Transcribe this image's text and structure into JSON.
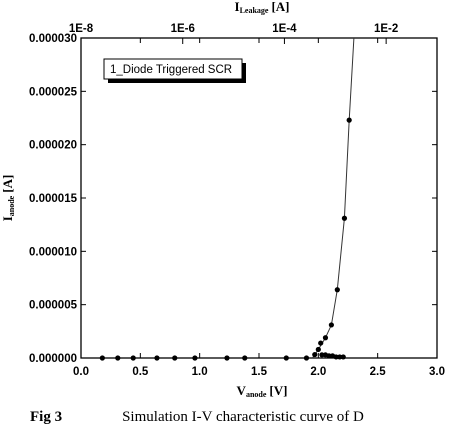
{
  "chart_data": {
    "type": "scatter",
    "legend": {
      "label": "1_Diode Triggered SCR",
      "placement": "top-left"
    },
    "x_axis": {
      "label_main": "V",
      "label_sub": "anode",
      "label_unit": "[V]",
      "range": [
        0.0,
        3.0
      ],
      "ticks": [
        "0.0",
        "0.5",
        "1.0",
        "1.5",
        "2.0",
        "2.5",
        "3.0"
      ],
      "tick_values": [
        0.0,
        0.5,
        1.0,
        1.5,
        2.0,
        2.5,
        3.0
      ]
    },
    "y_axis": {
      "label_main": "I",
      "label_sub": "anode",
      "label_unit": "[A]",
      "range": [
        0.0,
        3e-05
      ],
      "ticks": [
        "0.000000",
        "0.000005",
        "0.000010",
        "0.000015",
        "0.000020",
        "0.000025",
        "0.000030"
      ],
      "tick_values": [
        0.0,
        5e-06,
        1e-05,
        1.5e-05,
        2e-05,
        2.5e-05,
        3e-05
      ]
    },
    "top_axis": {
      "label_main": "I",
      "label_sub": "Leakage",
      "label_unit": "[A]",
      "scale": "log",
      "range": [
        1e-08,
        0.1
      ],
      "ticks": [
        "1E-8",
        "1E-6",
        "1E-4",
        "1E-2"
      ],
      "tick_values": [
        1e-08,
        1e-06,
        0.0001,
        0.01
      ]
    },
    "series": [
      {
        "marker": "circle",
        "points": [
          {
            "x": 0.18,
            "y": 0.0
          },
          {
            "x": 0.31,
            "y": 0.0
          },
          {
            "x": 0.44,
            "y": 0.0
          },
          {
            "x": 0.64,
            "y": 0.0
          },
          {
            "x": 0.79,
            "y": 0.0
          },
          {
            "x": 0.96,
            "y": 0.0
          },
          {
            "x": 1.23,
            "y": 0.0
          },
          {
            "x": 1.38,
            "y": 0.0
          },
          {
            "x": 1.73,
            "y": 0.0
          },
          {
            "x": 1.9,
            "y": 0.0
          },
          {
            "x": 1.97,
            "y": 3.2e-07
          },
          {
            "x": 2.0,
            "y": 8e-07
          },
          {
            "x": 2.02,
            "y": 1.4e-06
          },
          {
            "x": 2.06,
            "y": 1.9e-06
          },
          {
            "x": 2.11,
            "y": 3.1e-06
          },
          {
            "x": 2.16,
            "y": 6.4e-06
          },
          {
            "x": 2.22,
            "y": 1.31e-05
          },
          {
            "x": 2.26,
            "y": 2.23e-05
          },
          {
            "x": 2.03,
            "y": 3e-07
          },
          {
            "x": 2.06,
            "y": 3e-07
          },
          {
            "x": 2.09,
            "y": 2e-07
          },
          {
            "x": 2.12,
            "y": 2e-07
          },
          {
            "x": 2.15,
            "y": 1e-07
          },
          {
            "x": 2.18,
            "y": 1e-07
          },
          {
            "x": 2.21,
            "y": 1e-07
          }
        ]
      },
      {
        "marker": "line",
        "points": [
          {
            "x": 1.95,
            "y": 0.0
          },
          {
            "x": 2.0,
            "y": 8e-07
          },
          {
            "x": 2.06,
            "y": 1.9e-06
          },
          {
            "x": 2.11,
            "y": 3.1e-06
          },
          {
            "x": 2.16,
            "y": 6.4e-06
          },
          {
            "x": 2.22,
            "y": 1.31e-05
          },
          {
            "x": 2.26,
            "y": 2.23e-05
          },
          {
            "x": 2.3,
            "y": 3e-05
          }
        ]
      }
    ],
    "grid": false
  },
  "caption": {
    "left": "Fig 3",
    "right": "Simulation I-V characteristic curve of D"
  }
}
